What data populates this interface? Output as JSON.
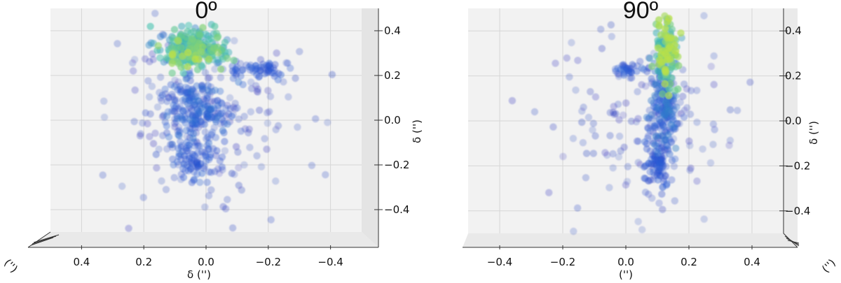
{
  "chart_data": [
    {
      "type": "scatter",
      "title": "0º",
      "xlabel": "δ  ('')",
      "ylabel": "δ  ('')",
      "side_label": "('')",
      "xlim": [
        0.5,
        -0.5
      ],
      "ylim": [
        -0.5,
        0.5
      ],
      "xticks": [
        "0.4",
        "0.2",
        "0.0",
        "−0.2",
        "−0.4"
      ],
      "xtick_values": [
        0.4,
        0.2,
        0.0,
        -0.2,
        -0.4
      ],
      "yticks": [
        "0.4",
        "0.2",
        "0.0",
        "−0.2",
        "−0.4"
      ],
      "ytick_values": [
        0.4,
        0.2,
        0.0,
        -0.2,
        -0.4
      ],
      "grid": true,
      "colormap": [
        "#1010b0",
        "#2a5fd6",
        "#3fc0b0",
        "#b8e04a"
      ],
      "clusters": [
        {
          "cx": 0.04,
          "cy": 0.34,
          "sx": 0.06,
          "sy": 0.04,
          "n": 160,
          "level": 0.75
        },
        {
          "cx": 0.06,
          "cy": 0.28,
          "sx": 0.04,
          "sy": 0.03,
          "n": 60,
          "level": 0.95
        },
        {
          "cx": 0.04,
          "cy": 0.05,
          "sx": 0.06,
          "sy": 0.07,
          "n": 200,
          "level": 0.35
        },
        {
          "cx": 0.03,
          "cy": -0.18,
          "sx": 0.04,
          "sy": 0.05,
          "n": 90,
          "level": 0.3
        },
        {
          "cx": -0.17,
          "cy": 0.22,
          "sx": 0.05,
          "sy": 0.02,
          "n": 60,
          "level": 0.3
        },
        {
          "cx": 0.0,
          "cy": 0.0,
          "sx": 0.16,
          "sy": 0.2,
          "n": 170,
          "level": 0.1
        }
      ]
    },
    {
      "type": "scatter",
      "title": "90º",
      "xlabel": "('')",
      "ylabel": "δ  ('')",
      "side_label": "('')",
      "xlim": [
        -0.5,
        0.5
      ],
      "ylim": [
        -0.5,
        0.5
      ],
      "xticks": [
        "−0.4",
        "−0.2",
        "0.0",
        "0.2",
        "0.4"
      ],
      "xtick_values": [
        -0.4,
        -0.2,
        0.0,
        0.2,
        0.4
      ],
      "yticks": [
        "0.4",
        "0.2",
        "0.0",
        "−0.2",
        "−0.4"
      ],
      "ytick_values": [
        0.4,
        0.2,
        0.0,
        -0.2,
        -0.4
      ],
      "grid": true,
      "colormap": [
        "#1010b0",
        "#2a5fd6",
        "#3fc0b0",
        "#b8e04a"
      ],
      "clusters": [
        {
          "cx": 0.13,
          "cy": 0.3,
          "sx": 0.018,
          "sy": 0.08,
          "n": 130,
          "level": 0.95
        },
        {
          "cx": 0.12,
          "cy": 0.08,
          "sx": 0.02,
          "sy": 0.1,
          "n": 160,
          "level": 0.4
        },
        {
          "cx": 0.1,
          "cy": -0.16,
          "sx": 0.02,
          "sy": 0.09,
          "n": 110,
          "level": 0.3
        },
        {
          "cx": 0.02,
          "cy": 0.23,
          "sx": 0.03,
          "sy": 0.02,
          "n": 35,
          "level": 0.3
        },
        {
          "cx": 0.05,
          "cy": 0.0,
          "sx": 0.15,
          "sy": 0.22,
          "n": 150,
          "level": 0.1
        }
      ]
    }
  ]
}
